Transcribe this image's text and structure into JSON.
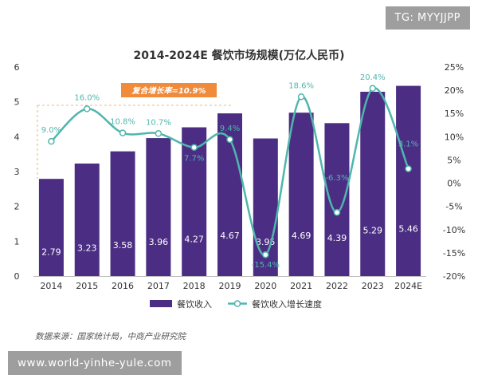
{
  "watermark_top": "TG: MYYJJPP",
  "watermark_bottom": "www.world-yinhe-yule.com",
  "chart_data": {
    "type": "bar",
    "title": "2014-2024E 餐饮市场规模(万亿人民币)",
    "categories": [
      "2014",
      "2015",
      "2016",
      "2017",
      "2018",
      "2019",
      "2020",
      "2021",
      "2022",
      "2023",
      "2024E"
    ],
    "series": [
      {
        "name": "餐饮收入",
        "type": "bar",
        "axis": "left",
        "values": [
          2.79,
          3.23,
          3.58,
          3.96,
          4.27,
          4.67,
          3.95,
          4.69,
          4.39,
          5.29,
          5.46
        ],
        "labels": [
          "2.79",
          "3.23",
          "3.58",
          "3.96",
          "4.27",
          "4.67",
          "3.95",
          "4.69",
          "4.39",
          "5.29",
          "5.46"
        ]
      },
      {
        "name": "餐饮收入增长速度",
        "type": "line",
        "axis": "right",
        "values": [
          9.0,
          16.0,
          10.8,
          10.7,
          7.7,
          9.4,
          -15.4,
          18.6,
          -6.3,
          20.4,
          3.1
        ],
        "labels": [
          "9.0%",
          "16.0%",
          "10.8%",
          "10.7%",
          "7.7%",
          "9.4%",
          "-15.4%",
          "18.6%",
          "-6.3%",
          "20.4%",
          "3.1%"
        ]
      }
    ],
    "left_axis": {
      "min": 0,
      "max": 6,
      "ticks": [
        "0",
        "1",
        "2",
        "3",
        "4",
        "5",
        "6"
      ]
    },
    "right_axis": {
      "min": -20,
      "max": 25,
      "ticks": [
        "-20%",
        "-15%",
        "-10%",
        "-5%",
        "0%",
        "5%",
        "10%",
        "15%",
        "20%",
        "25%"
      ]
    },
    "annotation": "复合增长率=10.9%",
    "source": "数据来源：国家统计局，中商产业研究院",
    "legend_placement": "bottom",
    "grid": false,
    "colors": {
      "bar": "#4b2e83",
      "line": "#4fb6ad",
      "annotation_box": "#ef8b3b",
      "dashed": "#e8b87a"
    }
  }
}
